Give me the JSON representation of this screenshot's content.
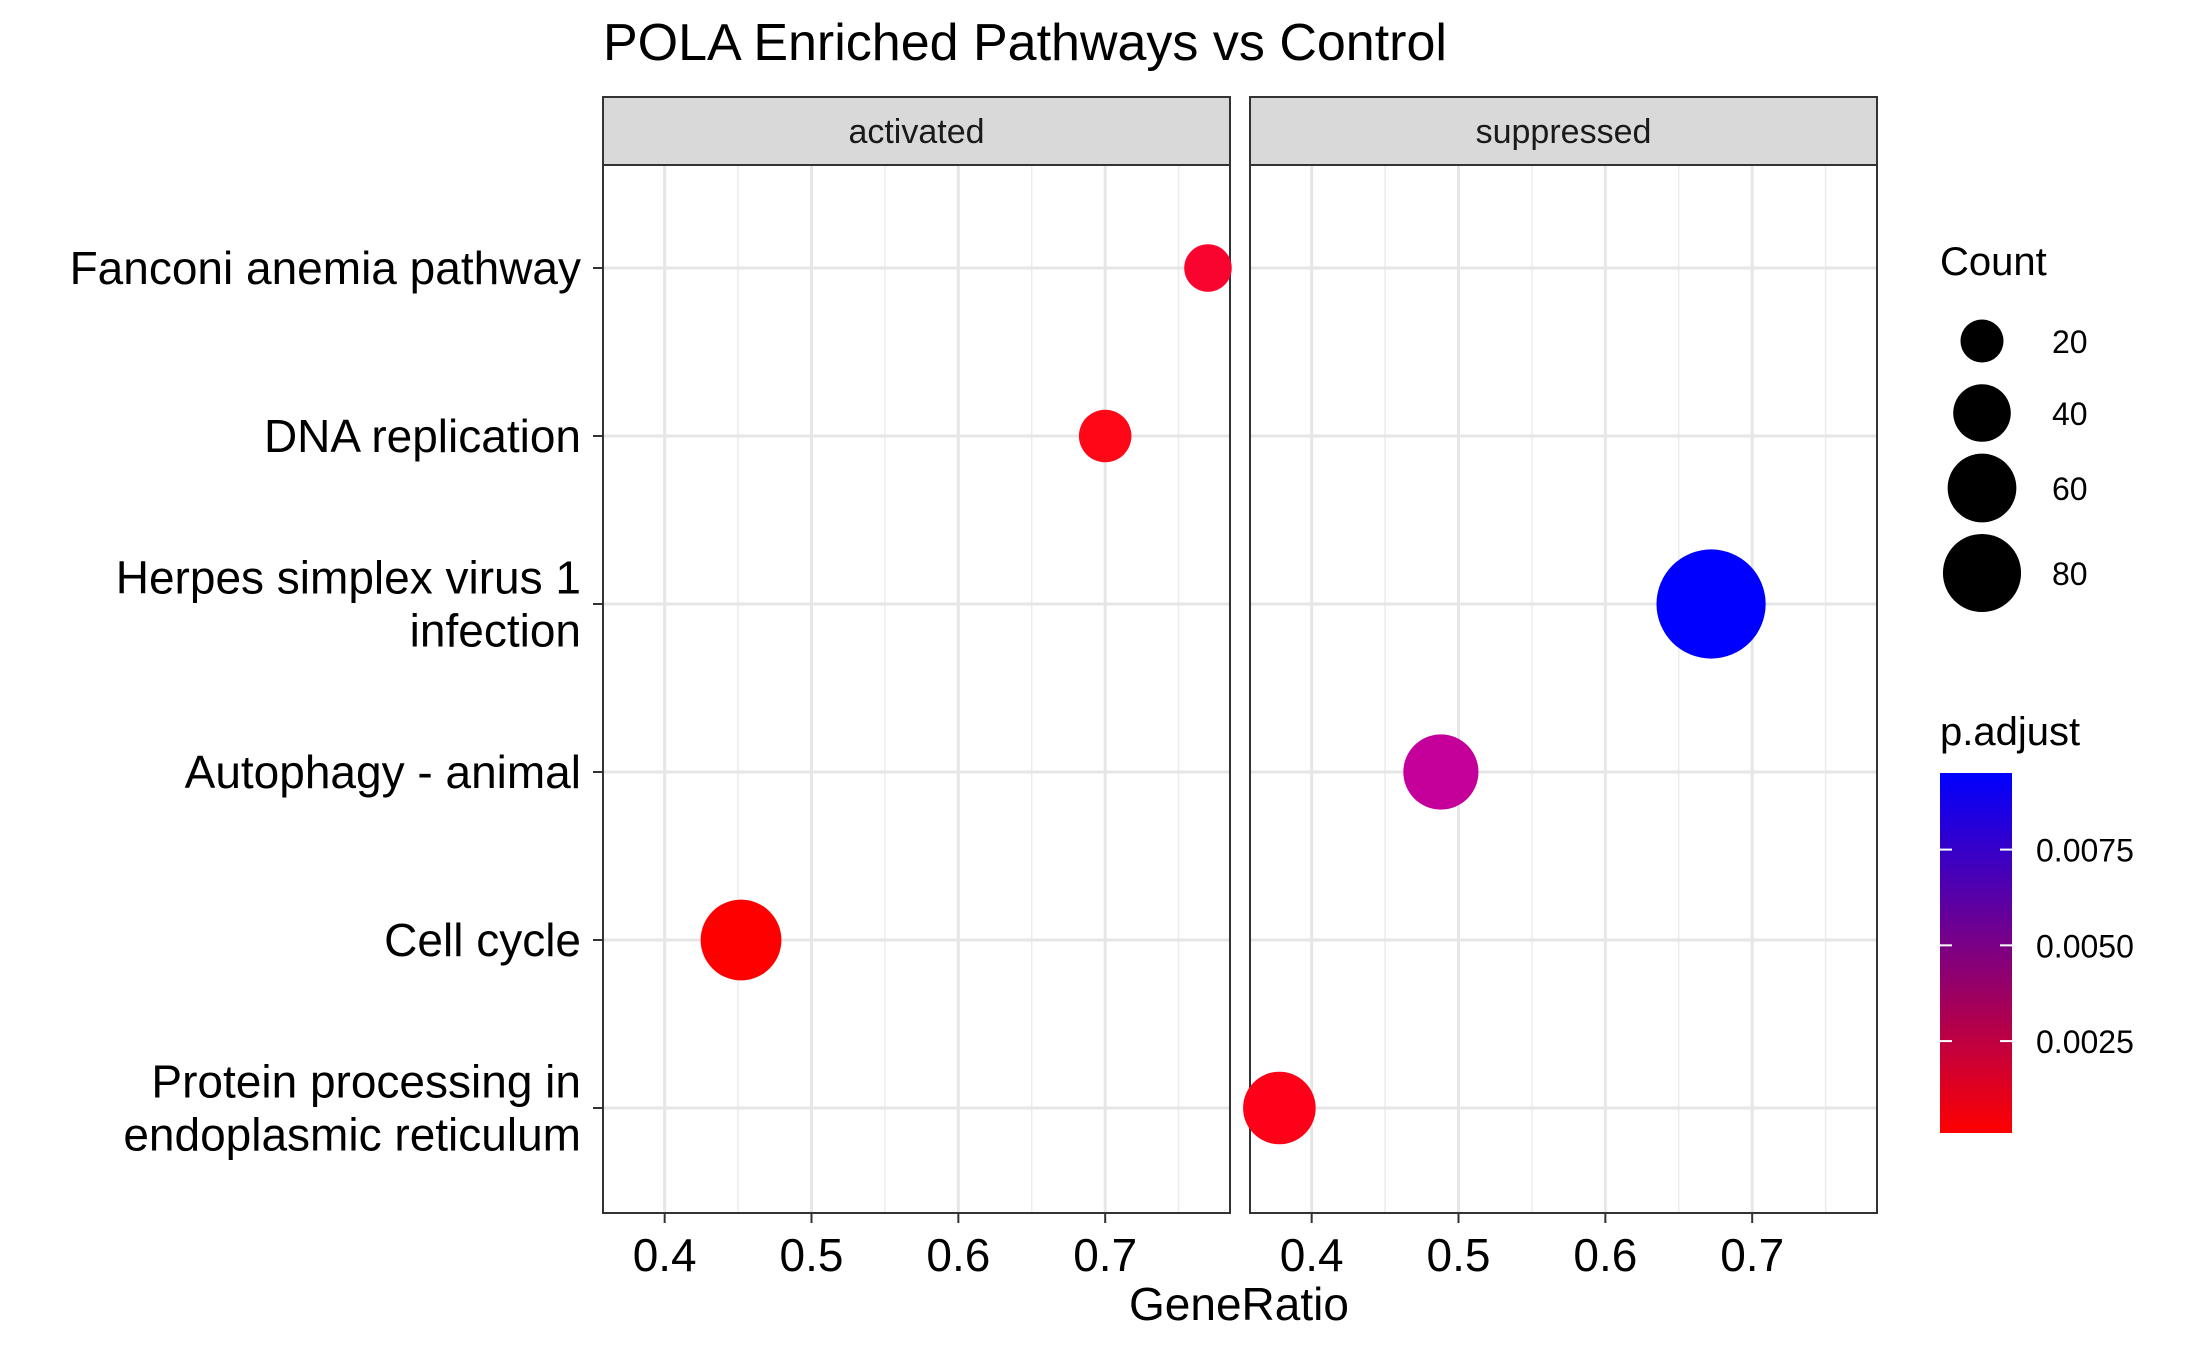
{
  "chart_data": {
    "type": "scatter",
    "title": "POLA Enriched Pathways vs Control",
    "xlabel": "GeneRatio",
    "ylabel": "",
    "facets": [
      "activated",
      "suppressed"
    ],
    "categories": [
      "Fanconi anemia pathway",
      "DNA replication",
      "Herpes simplex virus 1 infection",
      "Autophagy - animal",
      "Cell cycle",
      "Protein processing in endoplasmic reticulum"
    ],
    "category_lines": [
      [
        "Fanconi anemia pathway"
      ],
      [
        "DNA replication"
      ],
      [
        "Herpes simplex virus 1",
        "infection"
      ],
      [
        "Autophagy - animal"
      ],
      [
        "Cell cycle"
      ],
      [
        "Protein processing in",
        "endoplasmic reticulum"
      ]
    ],
    "xlim": [
      0.358,
      0.785
    ],
    "xticks": [
      0.4,
      0.5,
      0.6,
      0.7
    ],
    "xtick_labels": [
      "0.4",
      "0.5",
      "0.6",
      "0.7"
    ],
    "grid": true,
    "points": [
      {
        "facet": "activated",
        "category": "Fanconi anemia pathway",
        "x": 0.77,
        "count": 18,
        "p_adjust": 0.0003,
        "color": "#f8042e"
      },
      {
        "facet": "activated",
        "category": "DNA replication",
        "x": 0.7,
        "count": 22,
        "p_adjust": 0.0001,
        "color": "#ff0717"
      },
      {
        "facet": "activated",
        "category": "Cell cycle",
        "x": 0.452,
        "count": 52,
        "p_adjust": 0.0001,
        "color": "#ff0000"
      },
      {
        "facet": "suppressed",
        "category": "Herpes simplex virus 1 infection",
        "x": 0.672,
        "count": 95,
        "p_adjust": 0.0093,
        "color": "#0000ff"
      },
      {
        "facet": "suppressed",
        "category": "Autophagy - animal",
        "x": 0.488,
        "count": 45,
        "p_adjust": 0.0055,
        "color": "#c5009a"
      },
      {
        "facet": "suppressed",
        "category": "Protein processing in endoplasmic reticulum",
        "x": 0.378,
        "count": 42,
        "p_adjust": 0.0001,
        "color": "#ff0019"
      }
    ],
    "size_legend": {
      "title": "Count",
      "values": [
        20,
        40,
        60,
        80
      ],
      "labels": [
        "20",
        "40",
        "60",
        "80"
      ]
    },
    "color_legend": {
      "title": "p.adjust",
      "low_color": "#ff0000",
      "high_color": "#0000ff",
      "range": [
        0.0001,
        0.0095
      ],
      "ticks": [
        0.0025,
        0.005,
        0.0075
      ],
      "tick_labels": [
        "0.0025",
        "0.0050",
        "0.0075"
      ]
    }
  }
}
